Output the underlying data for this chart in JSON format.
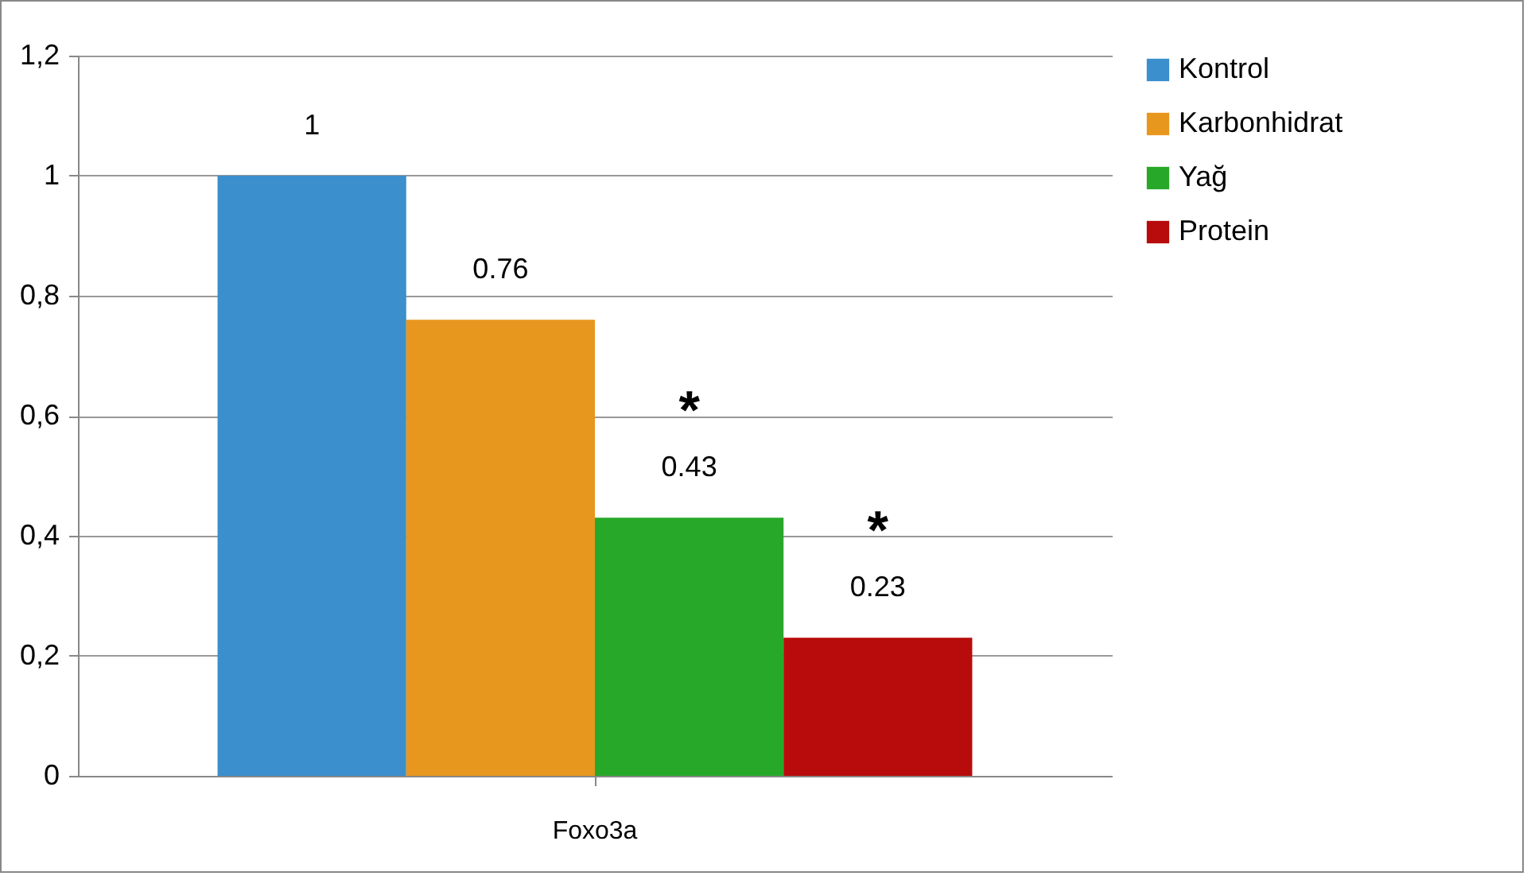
{
  "chart_data": {
    "type": "bar",
    "categories": [
      "Foxo3a"
    ],
    "series": [
      {
        "name": "Kontrol",
        "color": "#3a8fcc",
        "values": [
          1
        ]
      },
      {
        "name": "Karbonhidrat",
        "color": "#e8971e",
        "values": [
          0.76
        ]
      },
      {
        "name": "Yağ",
        "color": "#28a828",
        "values": [
          0.43
        ]
      },
      {
        "name": "Protein",
        "color": "#b80c0c",
        "values": [
          0.23
        ]
      }
    ],
    "ylim": [
      0,
      1.2
    ],
    "yticks": [
      0,
      {
        "value": 0.2,
        "label": "0,2"
      },
      {
        "value": 0.4,
        "label": "0,4"
      },
      {
        "value": 0.6,
        "label": "0,6"
      },
      {
        "value": 0.8,
        "label": "0,8"
      },
      1,
      {
        "value": 1.2,
        "label": "1,2"
      }
    ],
    "grid": "y",
    "legend": "right",
    "data_labels": true,
    "annotations": [
      "*",
      "*"
    ]
  }
}
